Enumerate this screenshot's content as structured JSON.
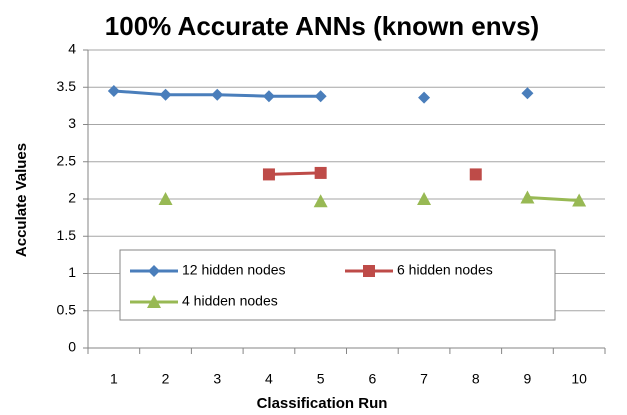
{
  "chart_data": {
    "type": "line",
    "title": "100% Accurate ANNs (known envs)",
    "x_label": "Classification Run",
    "y_label": "Acculate Values",
    "categories": [
      "1",
      "2",
      "3",
      "4",
      "5",
      "6",
      "7",
      "8",
      "9",
      "10"
    ],
    "series": [
      {
        "name": "12 hidden nodes",
        "color": "#4a7ebb",
        "marker": "diamond",
        "values": [
          3.45,
          3.4,
          3.4,
          3.38,
          3.38,
          null,
          3.36,
          null,
          3.42,
          null
        ]
      },
      {
        "name": "6 hidden nodes",
        "color": "#be4b48",
        "marker": "square",
        "values": [
          null,
          null,
          null,
          2.33,
          2.35,
          null,
          null,
          2.33,
          null,
          null
        ]
      },
      {
        "name": "4 hidden nodes",
        "color": "#98b954",
        "marker": "triangle",
        "values": [
          null,
          2.0,
          null,
          null,
          1.97,
          null,
          2.0,
          null,
          2.02,
          1.98
        ]
      }
    ],
    "ylim": [
      0,
      4
    ],
    "yticks": [
      0,
      0.5,
      1,
      1.5,
      2,
      2.5,
      3,
      3.5,
      4
    ],
    "grid": true,
    "legend": "bottom"
  }
}
